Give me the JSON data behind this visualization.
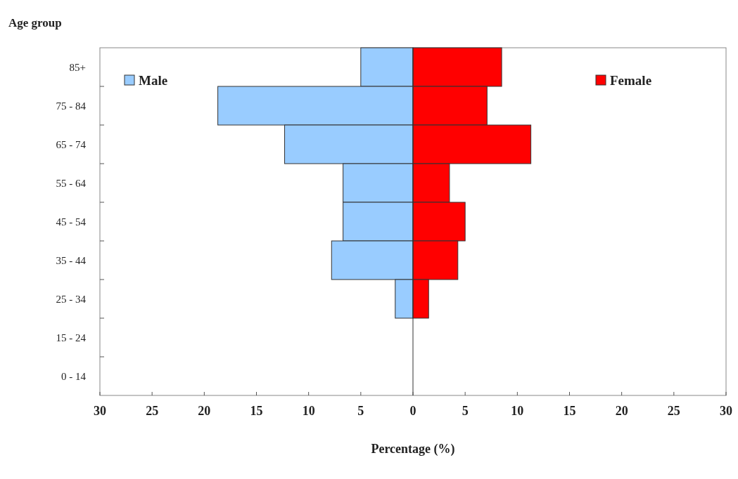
{
  "chart_data": {
    "type": "bar",
    "orientation": "horizontal",
    "ylabel": "Age group",
    "xlabel": "Percentage (%)",
    "categories": [
      "85+",
      "75 - 84",
      "65 - 74",
      "55 - 64",
      "45 - 54",
      "35 - 44",
      "25 - 34",
      "15 - 24",
      "0 - 14"
    ],
    "series": [
      {
        "name": "Male",
        "color": "#99ccff",
        "values": [
          -5.0,
          -18.7,
          -12.3,
          -6.7,
          -6.7,
          -7.8,
          -1.7,
          0,
          0
        ]
      },
      {
        "name": "Female",
        "color": "#ff0000",
        "values": [
          8.5,
          7.1,
          11.3,
          3.5,
          5.0,
          4.3,
          1.5,
          0,
          0
        ]
      }
    ],
    "xlim": [
      -30,
      30
    ],
    "xticks": [
      {
        "value": -30,
        "label": "30"
      },
      {
        "value": -25,
        "label": "25"
      },
      {
        "value": -20,
        "label": "20"
      },
      {
        "value": -15,
        "label": "15"
      },
      {
        "value": -10,
        "label": "10"
      },
      {
        "value": -5,
        "label": "5"
      },
      0,
      5,
      10,
      15,
      20,
      25,
      30
    ],
    "stacked": true,
    "legend": "top"
  }
}
